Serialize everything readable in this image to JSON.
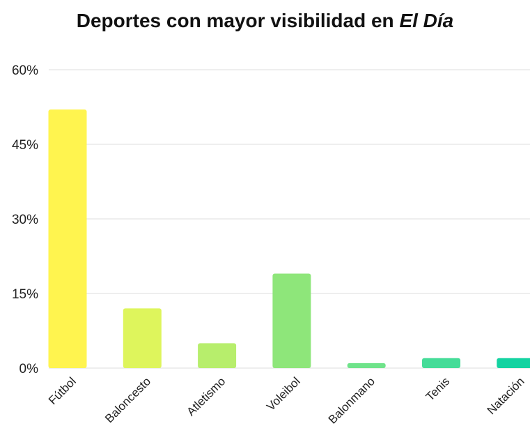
{
  "chart_data": {
    "type": "bar",
    "title": "Deportes con mayor visibilidad en ",
    "title_emphasis": "El Día",
    "xlabel": "",
    "ylabel": "",
    "categories": [
      "Fútbol",
      "Baloncesto",
      "Atletismo",
      "Voleibol",
      "Balonmano",
      "Tenis",
      "Natación"
    ],
    "values": [
      52,
      12,
      5,
      19,
      1,
      2,
      2
    ],
    "unit": "%",
    "ylim": [
      0,
      60
    ],
    "yticks": [
      0,
      15,
      30,
      45,
      60
    ],
    "ytick_labels": [
      "0%",
      "15%",
      "30%",
      "45%",
      "60%"
    ],
    "grid": true,
    "legend": "none",
    "colors": [
      "#fff44f",
      "#def55c",
      "#b7ee6c",
      "#8ee67a",
      "#6fe38a",
      "#45dc98",
      "#14d3a1"
    ],
    "gridline_color": "#dddddd"
  }
}
